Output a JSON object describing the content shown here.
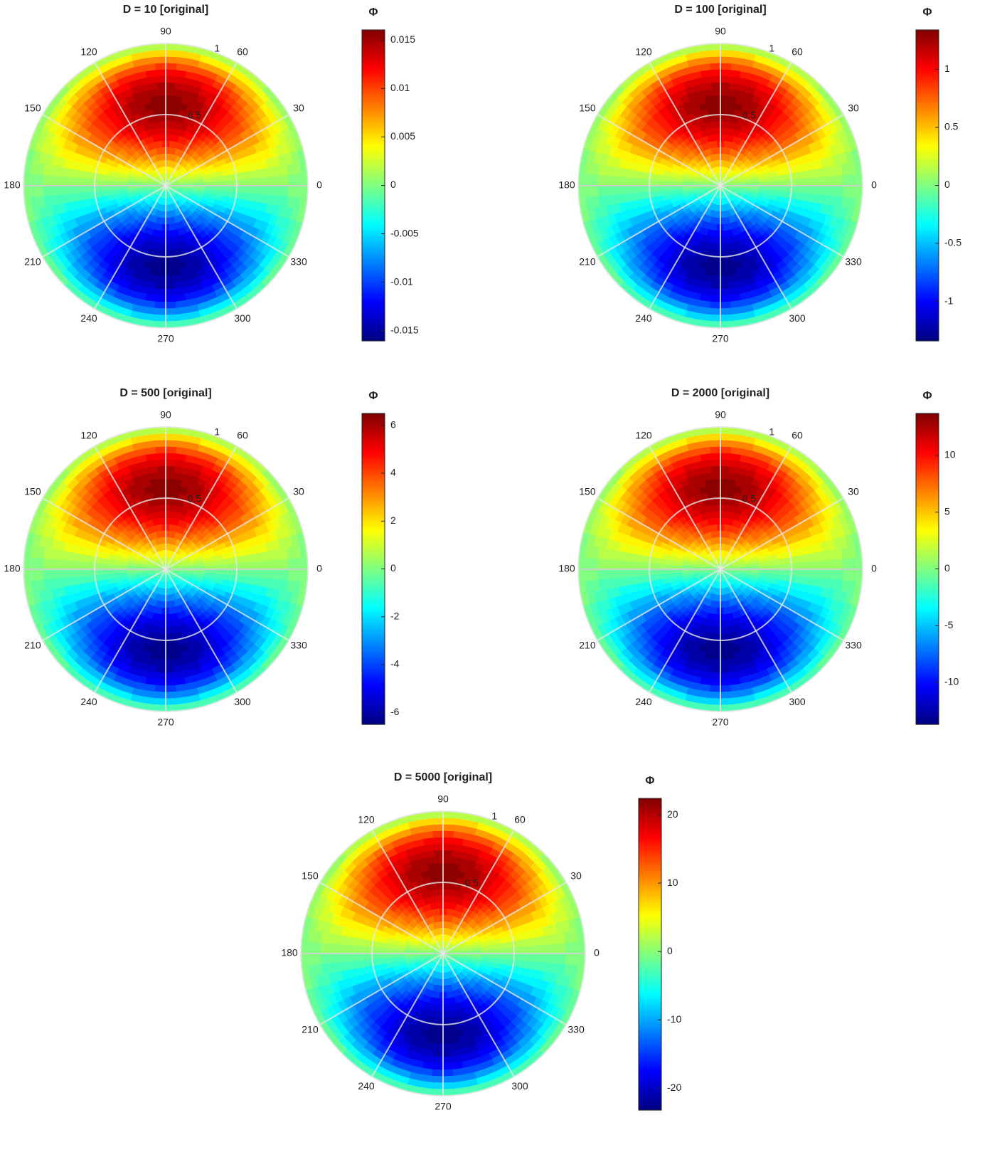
{
  "chart_data": [
    {
      "type": "polar_contour",
      "title": "D = 10 [original]",
      "colormap": "jet",
      "theta_ticks": [
        0,
        30,
        60,
        90,
        120,
        150,
        180,
        210,
        240,
        270,
        300,
        330
      ],
      "rlim": [
        0,
        1
      ],
      "rticks": [
        0.5,
        1
      ],
      "colorbar": {
        "label": "Φ",
        "lim": [
          -0.01605,
          0.01605
        ],
        "ticks": [
          -0.015,
          -0.01,
          -0.005,
          0,
          0.005,
          0.01,
          0.015
        ]
      }
    },
    {
      "type": "polar_contour",
      "title": "D = 100 [original]",
      "colormap": "jet",
      "theta_ticks": [
        0,
        30,
        60,
        90,
        120,
        150,
        180,
        210,
        240,
        270,
        300,
        330
      ],
      "rlim": [
        0,
        1
      ],
      "rticks": [
        0.5,
        1
      ],
      "colorbar": {
        "label": "Φ",
        "lim": [
          -1.34,
          1.34
        ],
        "ticks": [
          -1,
          -0.5,
          0,
          0.5,
          1
        ]
      }
    },
    {
      "type": "polar_contour",
      "title": "D = 500 [original]",
      "colormap": "jet",
      "theta_ticks": [
        0,
        30,
        60,
        90,
        120,
        150,
        180,
        210,
        240,
        270,
        300,
        330
      ],
      "rlim": [
        0,
        1
      ],
      "rticks": [
        0.5,
        1
      ],
      "colorbar": {
        "label": "Φ",
        "lim": [
          -6.5,
          6.5
        ],
        "ticks": [
          -6,
          -4,
          -2,
          0,
          2,
          4,
          6
        ]
      }
    },
    {
      "type": "polar_contour",
      "title": "D = 2000 [original]",
      "colormap": "jet",
      "theta_ticks": [
        0,
        30,
        60,
        90,
        120,
        150,
        180,
        210,
        240,
        270,
        300,
        330
      ],
      "rlim": [
        0,
        1
      ],
      "rticks": [
        0.5,
        1
      ],
      "colorbar": {
        "label": "Φ",
        "lim": [
          -13.7,
          13.7
        ],
        "ticks": [
          -10,
          -5,
          0,
          5,
          10
        ]
      }
    },
    {
      "type": "polar_contour",
      "title": "D = 5000 [original]",
      "colormap": "jet",
      "theta_ticks": [
        0,
        30,
        60,
        90,
        120,
        150,
        180,
        210,
        240,
        270,
        300,
        330
      ],
      "rlim": [
        0,
        1
      ],
      "rticks": [
        0.5,
        1
      ],
      "colorbar": {
        "label": "Φ",
        "lim": [
          -23.2,
          22.4
        ],
        "ticks": [
          -20,
          -10,
          0,
          10,
          20
        ]
      }
    }
  ]
}
